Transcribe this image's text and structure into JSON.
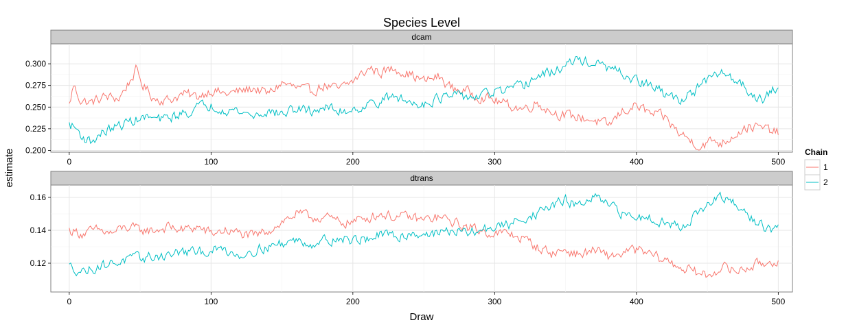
{
  "chart_data": {
    "type": "line",
    "title": "Species Level",
    "xlabel": "Draw",
    "ylabel": "estimate",
    "legend": {
      "title": "Chain",
      "placement": "right",
      "entries": [
        {
          "label": "1",
          "color": "#F8766D"
        },
        {
          "label": "2",
          "color": "#00BFC4"
        }
      ]
    },
    "xlim": [
      -13,
      510
    ],
    "xticks": [
      0,
      100,
      200,
      300,
      400,
      500
    ],
    "xtick_labels": [
      "0",
      "100",
      "200",
      "300",
      "400",
      "500"
    ],
    "grid": true,
    "facets": [
      {
        "strip": "dcam",
        "ylim": [
          0.198,
          0.323
        ],
        "yticks": [
          0.2,
          0.225,
          0.25,
          0.275,
          0.3
        ],
        "ytick_labels": [
          "0.200",
          "0.225",
          "0.250",
          "0.275",
          "0.300"
        ],
        "series": [
          {
            "name": "1",
            "color": "#F8766D",
            "anchors": [
              [
                0,
                0.252
              ],
              [
                3,
                0.275
              ],
              [
                8,
                0.258
              ],
              [
                15,
                0.255
              ],
              [
                25,
                0.262
              ],
              [
                35,
                0.26
              ],
              [
                42,
                0.278
              ],
              [
                47,
                0.292
              ],
              [
                52,
                0.275
              ],
              [
                60,
                0.26
              ],
              [
                70,
                0.258
              ],
              [
                80,
                0.265
              ],
              [
                90,
                0.262
              ],
              [
                100,
                0.27
              ],
              [
                110,
                0.265
              ],
              [
                120,
                0.268
              ],
              [
                130,
                0.272
              ],
              [
                140,
                0.265
              ],
              [
                150,
                0.278
              ],
              [
                160,
                0.272
              ],
              [
                170,
                0.268
              ],
              [
                180,
                0.275
              ],
              [
                190,
                0.27
              ],
              [
                200,
                0.28
              ],
              [
                208,
                0.29
              ],
              [
                212,
                0.295
              ],
              [
                220,
                0.29
              ],
              [
                230,
                0.295
              ],
              [
                240,
                0.288
              ],
              [
                250,
                0.28
              ],
              [
                260,
                0.285
              ],
              [
                270,
                0.272
              ],
              [
                280,
                0.268
              ],
              [
                290,
                0.262
              ],
              [
                300,
                0.258
              ],
              [
                310,
                0.252
              ],
              [
                320,
                0.248
              ],
              [
                330,
                0.255
              ],
              [
                340,
                0.245
              ],
              [
                350,
                0.24
              ],
              [
                360,
                0.238
              ],
              [
                370,
                0.235
              ],
              [
                380,
                0.228
              ],
              [
                390,
                0.245
              ],
              [
                400,
                0.252
              ],
              [
                410,
                0.242
              ],
              [
                420,
                0.238
              ],
              [
                430,
                0.22
              ],
              [
                440,
                0.21
              ],
              [
                445,
                0.205
              ],
              [
                455,
                0.212
              ],
              [
                460,
                0.208
              ],
              [
                470,
                0.22
              ],
              [
                480,
                0.228
              ],
              [
                490,
                0.225
              ],
              [
                500,
                0.22
              ]
            ]
          },
          {
            "name": "2",
            "color": "#00BFC4",
            "anchors": [
              [
                0,
                0.23
              ],
              [
                5,
                0.225
              ],
              [
                10,
                0.215
              ],
              [
                15,
                0.21
              ],
              [
                25,
                0.222
              ],
              [
                35,
                0.228
              ],
              [
                45,
                0.235
              ],
              [
                55,
                0.238
              ],
              [
                65,
                0.235
              ],
              [
                75,
                0.24
              ],
              [
                85,
                0.245
              ],
              [
                90,
                0.25
              ],
              [
                100,
                0.252
              ],
              [
                110,
                0.248
              ],
              [
                120,
                0.245
              ],
              [
                130,
                0.24
              ],
              [
                140,
                0.245
              ],
              [
                150,
                0.242
              ],
              [
                160,
                0.248
              ],
              [
                170,
                0.245
              ],
              [
                180,
                0.25
              ],
              [
                190,
                0.245
              ],
              [
                200,
                0.248
              ],
              [
                210,
                0.252
              ],
              [
                220,
                0.258
              ],
              [
                230,
                0.262
              ],
              [
                240,
                0.255
              ],
              [
                250,
                0.255
              ],
              [
                260,
                0.26
              ],
              [
                270,
                0.262
              ],
              [
                280,
                0.262
              ],
              [
                290,
                0.262
              ],
              [
                300,
                0.268
              ],
              [
                310,
                0.268
              ],
              [
                320,
                0.275
              ],
              [
                330,
                0.285
              ],
              [
                340,
                0.29
              ],
              [
                350,
                0.298
              ],
              [
                360,
                0.305
              ],
              [
                370,
                0.3
              ],
              [
                380,
                0.295
              ],
              [
                390,
                0.288
              ],
              [
                400,
                0.28
              ],
              [
                410,
                0.275
              ],
              [
                420,
                0.265
              ],
              [
                430,
                0.258
              ],
              [
                440,
                0.268
              ],
              [
                450,
                0.28
              ],
              [
                460,
                0.29
              ],
              [
                470,
                0.282
              ],
              [
                480,
                0.268
              ],
              [
                490,
                0.258
              ],
              [
                500,
                0.275
              ]
            ]
          }
        ]
      },
      {
        "strip": "dtrans",
        "ylim": [
          0.1025,
          0.1675
        ],
        "yticks": [
          0.12,
          0.14,
          0.16
        ],
        "ytick_labels": [
          "0.12",
          "0.14",
          "0.16"
        ],
        "series": [
          {
            "name": "1",
            "color": "#F8766D",
            "anchors": [
              [
                0,
                0.14
              ],
              [
                10,
                0.138
              ],
              [
                20,
                0.14
              ],
              [
                30,
                0.138
              ],
              [
                40,
                0.142
              ],
              [
                50,
                0.14
              ],
              [
                60,
                0.14
              ],
              [
                70,
                0.142
              ],
              [
                80,
                0.14
              ],
              [
                90,
                0.142
              ],
              [
                100,
                0.138
              ],
              [
                110,
                0.14
              ],
              [
                120,
                0.138
              ],
              [
                130,
                0.136
              ],
              [
                140,
                0.14
              ],
              [
                150,
                0.145
              ],
              [
                160,
                0.15
              ],
              [
                170,
                0.148
              ],
              [
                180,
                0.148
              ],
              [
                190,
                0.145
              ],
              [
                200,
                0.145
              ],
              [
                210,
                0.148
              ],
              [
                220,
                0.15
              ],
              [
                230,
                0.148
              ],
              [
                240,
                0.148
              ],
              [
                250,
                0.146
              ],
              [
                260,
                0.148
              ],
              [
                270,
                0.145
              ],
              [
                280,
                0.142
              ],
              [
                290,
                0.14
              ],
              [
                300,
                0.138
              ],
              [
                310,
                0.138
              ],
              [
                320,
                0.135
              ],
              [
                330,
                0.13
              ],
              [
                340,
                0.126
              ],
              [
                350,
                0.128
              ],
              [
                360,
                0.125
              ],
              [
                370,
                0.128
              ],
              [
                380,
                0.124
              ],
              [
                390,
                0.126
              ],
              [
                400,
                0.128
              ],
              [
                410,
                0.125
              ],
              [
                420,
                0.122
              ],
              [
                430,
                0.118
              ],
              [
                440,
                0.115
              ],
              [
                450,
                0.112
              ],
              [
                460,
                0.118
              ],
              [
                470,
                0.115
              ],
              [
                480,
                0.118
              ],
              [
                490,
                0.12
              ],
              [
                500,
                0.122
              ]
            ]
          },
          {
            "name": "2",
            "color": "#00BFC4",
            "anchors": [
              [
                0,
                0.118
              ],
              [
                10,
                0.115
              ],
              [
                20,
                0.118
              ],
              [
                30,
                0.12
              ],
              [
                40,
                0.122
              ],
              [
                50,
                0.123
              ],
              [
                60,
                0.124
              ],
              [
                70,
                0.125
              ],
              [
                80,
                0.127
              ],
              [
                90,
                0.126
              ],
              [
                100,
                0.128
              ],
              [
                110,
                0.128
              ],
              [
                120,
                0.125
              ],
              [
                130,
                0.128
              ],
              [
                140,
                0.13
              ],
              [
                150,
                0.132
              ],
              [
                160,
                0.134
              ],
              [
                170,
                0.132
              ],
              [
                180,
                0.134
              ],
              [
                190,
                0.135
              ],
              [
                200,
                0.134
              ],
              [
                210,
                0.135
              ],
              [
                220,
                0.137
              ],
              [
                230,
                0.136
              ],
              [
                240,
                0.138
              ],
              [
                250,
                0.138
              ],
              [
                260,
                0.138
              ],
              [
                270,
                0.14
              ],
              [
                280,
                0.138
              ],
              [
                290,
                0.14
              ],
              [
                300,
                0.142
              ],
              [
                310,
                0.143
              ],
              [
                320,
                0.148
              ],
              [
                330,
                0.15
              ],
              [
                340,
                0.155
              ],
              [
                350,
                0.158
              ],
              [
                360,
                0.155
              ],
              [
                370,
                0.16
              ],
              [
                380,
                0.155
              ],
              [
                390,
                0.15
              ],
              [
                400,
                0.148
              ],
              [
                410,
                0.148
              ],
              [
                420,
                0.145
              ],
              [
                430,
                0.142
              ],
              [
                440,
                0.148
              ],
              [
                450,
                0.155
              ],
              [
                460,
                0.16
              ],
              [
                470,
                0.155
              ],
              [
                480,
                0.148
              ],
              [
                490,
                0.142
              ],
              [
                500,
                0.14
              ]
            ]
          }
        ]
      }
    ]
  }
}
